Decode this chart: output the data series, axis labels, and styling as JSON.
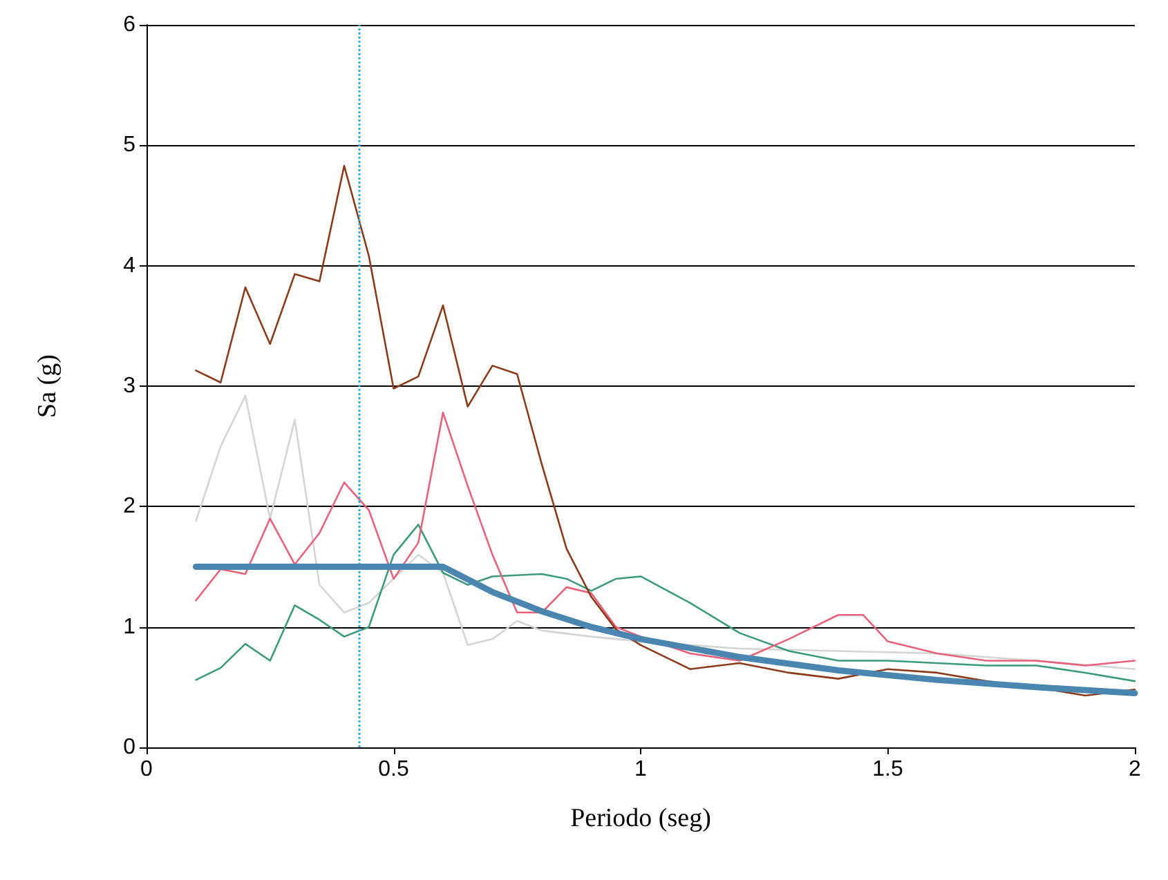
{
  "chart_data": {
    "type": "line",
    "xlabel": "Periodo (seg)",
    "ylabel": "Sa (g)",
    "xlim": [
      0,
      2
    ],
    "xticks": [
      0,
      0.5,
      1,
      1.5,
      2
    ],
    "ylim": [
      0,
      6
    ],
    "yticks": [
      0,
      1,
      2,
      3,
      4,
      5,
      6
    ],
    "grid": "y",
    "marker": "none",
    "line_style": "solid",
    "series": [
      {
        "color": "#d4d4d4",
        "x": [
          0.1,
          0.15,
          0.2,
          0.25,
          0.3,
          0.35,
          0.4,
          0.45,
          0.5,
          0.55,
          0.6,
          0.65,
          0.7,
          0.75,
          0.8,
          0.9,
          1.0,
          1.2,
          1.4,
          1.6,
          1.8,
          2.0
        ],
        "values": [
          1.88,
          2.5,
          2.92,
          1.9,
          2.72,
          1.35,
          1.12,
          1.2,
          1.4,
          1.6,
          1.45,
          0.85,
          0.9,
          1.05,
          0.97,
          0.92,
          0.88,
          0.82,
          0.8,
          0.78,
          0.72,
          0.65
        ]
      },
      {
        "color": "#3a9a7a",
        "x": [
          0.1,
          0.15,
          0.2,
          0.25,
          0.3,
          0.35,
          0.4,
          0.45,
          0.5,
          0.55,
          0.6,
          0.65,
          0.7,
          0.75,
          0.8,
          0.85,
          0.9,
          0.95,
          1.0,
          1.1,
          1.2,
          1.3,
          1.4,
          1.5,
          1.6,
          1.7,
          1.8,
          1.9,
          2.0
        ],
        "values": [
          0.56,
          0.66,
          0.86,
          0.72,
          1.18,
          1.06,
          0.92,
          1.0,
          1.6,
          1.85,
          1.45,
          1.35,
          1.42,
          1.43,
          1.44,
          1.4,
          1.3,
          1.4,
          1.42,
          1.2,
          0.95,
          0.8,
          0.72,
          0.72,
          0.7,
          0.68,
          0.68,
          0.62,
          0.55
        ]
      },
      {
        "color": "#e8607a",
        "x": [
          0.1,
          0.15,
          0.2,
          0.25,
          0.3,
          0.35,
          0.4,
          0.45,
          0.5,
          0.55,
          0.6,
          0.65,
          0.7,
          0.75,
          0.8,
          0.85,
          0.9,
          0.95,
          1.0,
          1.1,
          1.2,
          1.3,
          1.4,
          1.45,
          1.5,
          1.6,
          1.7,
          1.8,
          1.9,
          2.0
        ],
        "values": [
          1.22,
          1.48,
          1.44,
          1.9,
          1.52,
          1.78,
          2.2,
          1.97,
          1.4,
          1.7,
          2.78,
          2.17,
          1.6,
          1.12,
          1.12,
          1.33,
          1.28,
          1.0,
          0.92,
          0.78,
          0.72,
          0.9,
          1.1,
          1.1,
          0.88,
          0.78,
          0.72,
          0.72,
          0.68,
          0.72
        ]
      },
      {
        "color": "#8b3a1a",
        "x": [
          0.1,
          0.15,
          0.2,
          0.25,
          0.3,
          0.35,
          0.4,
          0.45,
          0.5,
          0.55,
          0.6,
          0.65,
          0.7,
          0.75,
          0.8,
          0.85,
          0.9,
          0.95,
          1.0,
          1.1,
          1.2,
          1.3,
          1.4,
          1.5,
          1.6,
          1.7,
          1.8,
          1.9,
          2.0
        ],
        "values": [
          3.13,
          3.03,
          3.82,
          3.35,
          3.93,
          3.87,
          4.83,
          4.08,
          2.98,
          3.08,
          3.67,
          2.83,
          3.17,
          3.1,
          2.35,
          1.65,
          1.25,
          0.98,
          0.85,
          0.65,
          0.7,
          0.62,
          0.57,
          0.65,
          0.62,
          0.55,
          0.5,
          0.43,
          0.48
        ]
      },
      {
        "color": "#4a86b0",
        "x": [
          0.1,
          0.6,
          0.7,
          0.8,
          0.9,
          1.0,
          1.2,
          1.4,
          1.6,
          1.8,
          2.0
        ],
        "values": [
          1.5,
          1.5,
          1.29,
          1.13,
          1.0,
          0.9,
          0.75,
          0.64,
          0.56,
          0.5,
          0.45
        ]
      }
    ],
    "ref_lines": [
      {
        "axis": "x",
        "value": 0.43,
        "color": "#33aacc",
        "line_style": "dotted"
      }
    ]
  }
}
